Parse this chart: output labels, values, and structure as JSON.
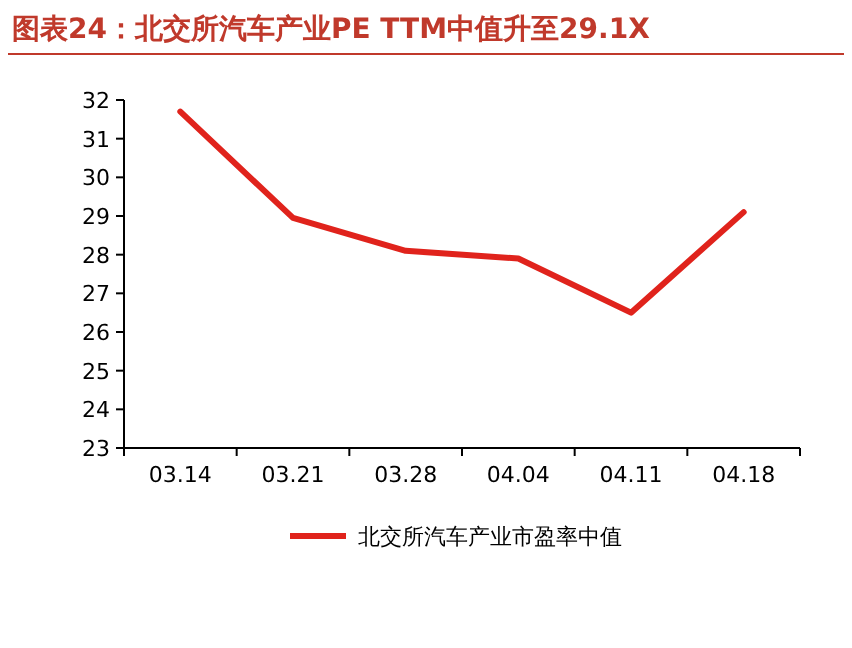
{
  "chart_data": {
    "type": "line",
    "title": "图表24：北交所汽车产业PE TTM中值升至29.1X",
    "categories": [
      "03.14",
      "03.21",
      "03.28",
      "04.04",
      "04.11",
      "04.18"
    ],
    "series": [
      {
        "name": "北交所汽车产业市盈率中值",
        "color": "#e0231c",
        "values": [
          31.7,
          28.95,
          28.1,
          27.9,
          26.5,
          29.1
        ]
      }
    ],
    "ylim": [
      23,
      32
    ],
    "yticks": [
      23,
      24,
      25,
      26,
      27,
      28,
      29,
      30,
      31,
      32
    ],
    "legend": "bottom",
    "grid": false
  }
}
